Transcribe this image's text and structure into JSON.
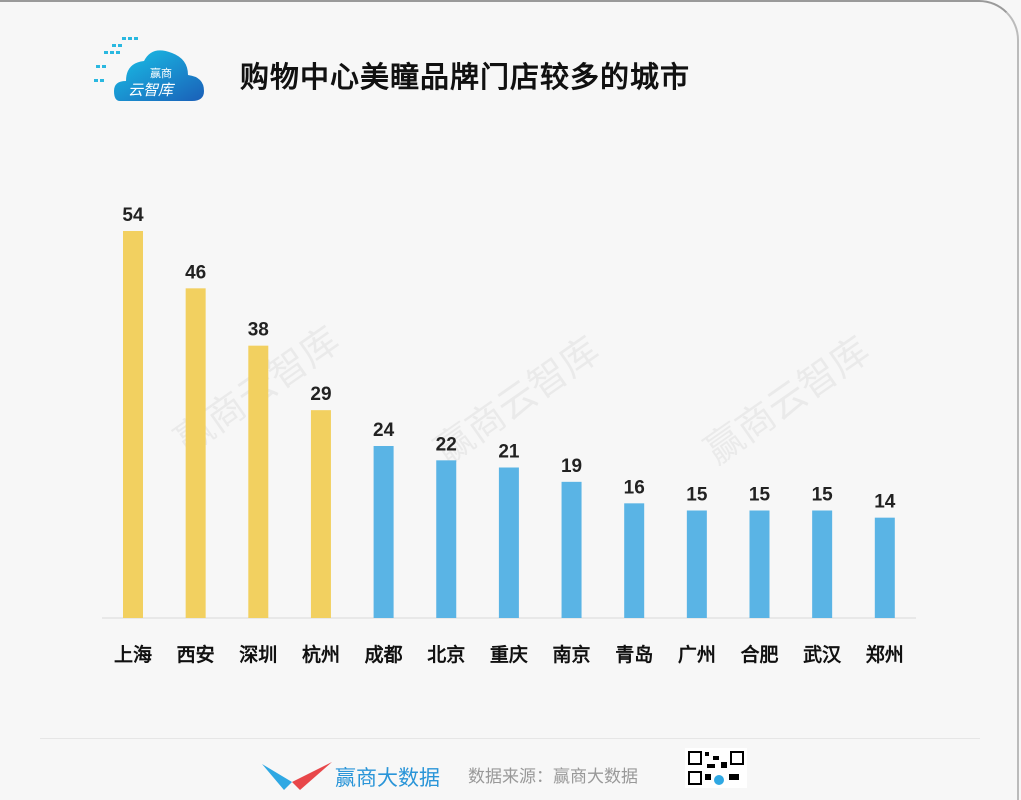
{
  "title": "购物中心美瞳品牌门店较多的城市",
  "logo": {
    "line1": "赢商",
    "line2": "云智库"
  },
  "watermark": "赢商云智库",
  "footer": {
    "brand": "赢商大数据",
    "source": "数据来源：赢商大数据"
  },
  "colors": {
    "highlight": "#f2d060",
    "normal": "#5ab4e5"
  },
  "chart_data": {
    "type": "bar",
    "title": "购物中心美瞳品牌门店较多的城市",
    "categories": [
      "上海",
      "西安",
      "深圳",
      "杭州",
      "成都",
      "北京",
      "重庆",
      "南京",
      "青岛",
      "广州",
      "合肥",
      "武汉",
      "郑州"
    ],
    "values": [
      54,
      46,
      38,
      29,
      24,
      22,
      21,
      19,
      16,
      15,
      15,
      15,
      14
    ],
    "highlighted": [
      "上海",
      "西安",
      "深圳",
      "杭州"
    ],
    "data_labels": true,
    "grid": false,
    "ylim": [
      0,
      54
    ]
  }
}
